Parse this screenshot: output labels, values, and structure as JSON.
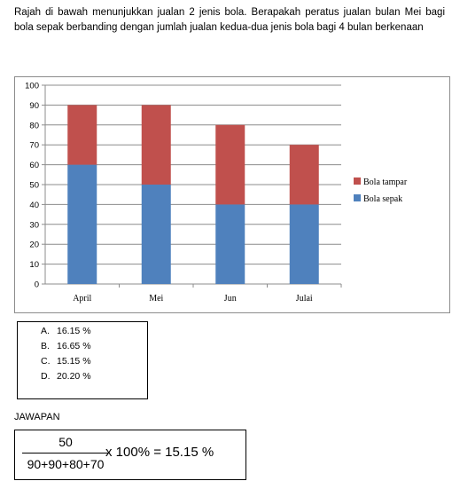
{
  "question": "Rajah di bawah menunjukkan jualan 2 jenis bola. Berapakah peratus jualan bulan Mei bagi bola sepak berbanding dengan jumlah jualan kedua-dua jenis bola bagi 4 bulan berkenaan",
  "chart_data": {
    "type": "bar",
    "stacked": true,
    "categories": [
      "April",
      "Mei",
      "Jun",
      "Julai"
    ],
    "series": [
      {
        "name": "Bola sepak",
        "values": [
          60,
          50,
          40,
          40
        ],
        "color": "#4f81bd"
      },
      {
        "name": "Bola tampar",
        "values": [
          30,
          40,
          40,
          30
        ],
        "color": "#c0504d"
      }
    ],
    "ylim": [
      0,
      100
    ],
    "yticks": [
      0,
      10,
      20,
      30,
      40,
      50,
      60,
      70,
      80,
      90,
      100
    ],
    "grid": true,
    "legend": "right",
    "legend_order": [
      "Bola tampar",
      "Bola sepak"
    ]
  },
  "options": [
    {
      "key": "A.",
      "text": "16.15 %"
    },
    {
      "key": "B.",
      "text": "16.65 %"
    },
    {
      "key": "C.",
      "text": "15.15 %"
    },
    {
      "key": "D.",
      "text": "20.20 %"
    }
  ],
  "answer": {
    "label": "JAWAPAN",
    "numerator": "50",
    "denominator": "90+90+80+70",
    "rest": "x 100% = 15.15 %"
  }
}
